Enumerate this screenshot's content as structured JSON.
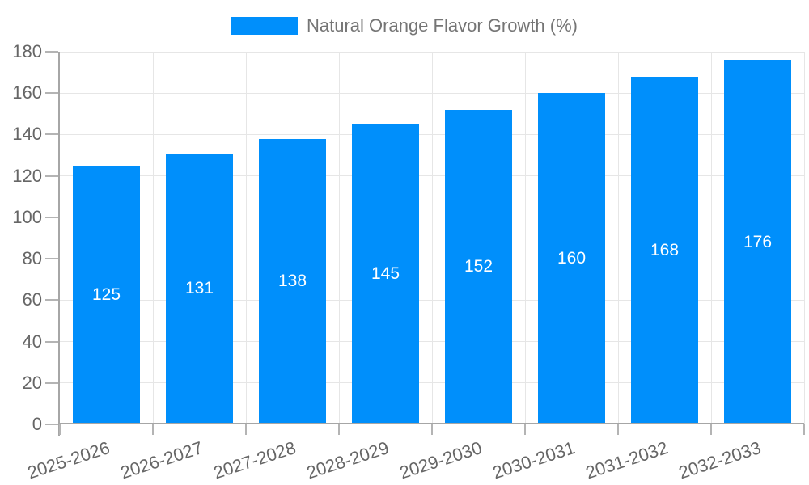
{
  "legend": {
    "label": "Natural Orange Flavor Growth (%)",
    "swatch_color": "#008FFB"
  },
  "colors": {
    "bar": "#008FFB",
    "bar_value_text": "#ffffff",
    "axis_text": "#666666",
    "legend_text": "#757575",
    "gridline": "#e6e6e6",
    "axis_line": "#a6a6a6",
    "tick": "#b4b4b4",
    "background": "#ffffff"
  },
  "chart_data": {
    "type": "bar",
    "title": "Natural Orange Flavor Growth (%)",
    "categories": [
      "2025-2026",
      "2026-2027",
      "2027-2028",
      "2028-2029",
      "2029-2030",
      "2030-2031",
      "2031-2032",
      "2032-2033"
    ],
    "values": [
      125,
      131,
      138,
      145,
      152,
      160,
      168,
      176
    ],
    "xlabel": "",
    "ylabel": "",
    "ylim": [
      0,
      180
    ],
    "yticks": [
      0,
      20,
      40,
      60,
      80,
      100,
      120,
      140,
      160,
      180
    ],
    "grid": true,
    "legend_position": "top",
    "value_label_position": "inside-center",
    "x_tick_rotation_deg": -18
  }
}
